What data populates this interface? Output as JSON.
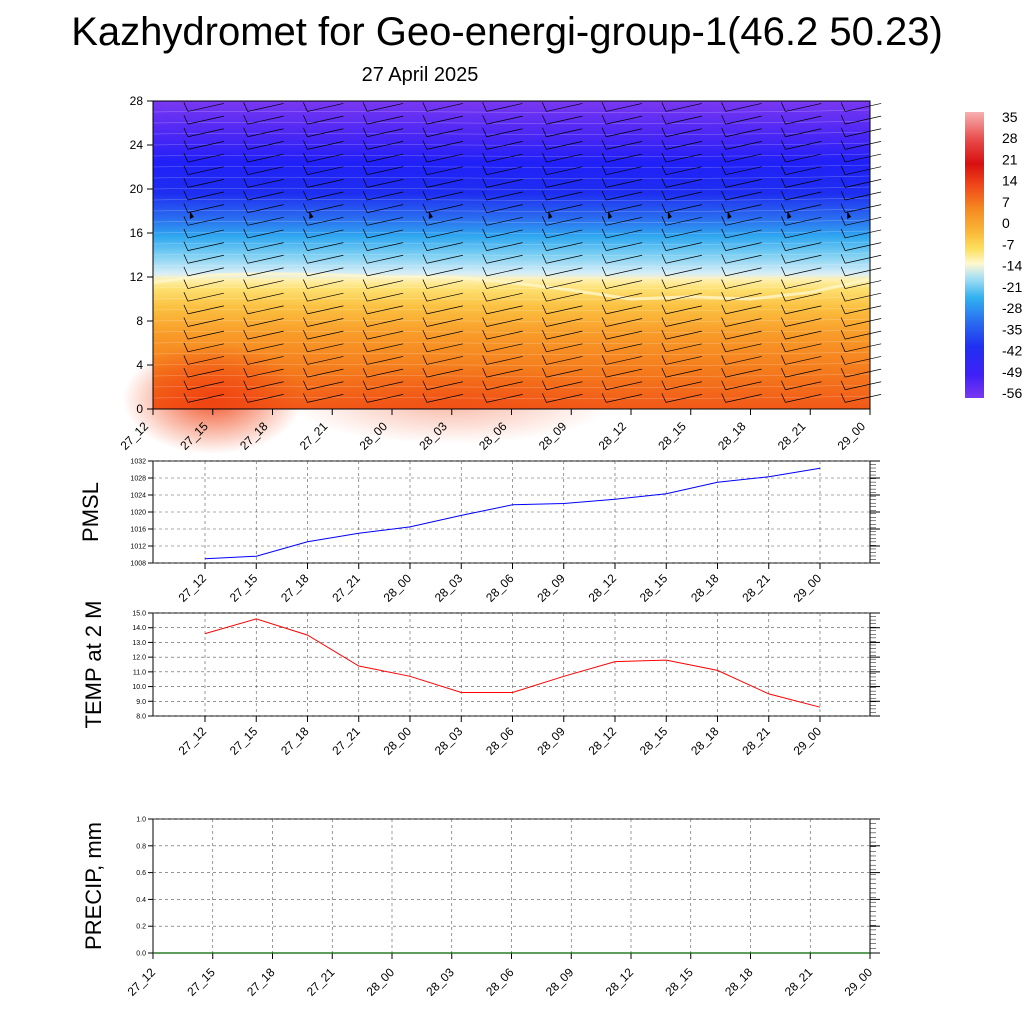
{
  "title": "Kazhydromet for Geo-energi-group-1(46.2 50.23)",
  "subtitle": "27 April 2025",
  "chart_data": [
    {
      "type": "heatmap",
      "name": "cross-section",
      "x_ticks": [
        "27_12",
        "27_15",
        "27_18",
        "27_21",
        "28_00",
        "28_03",
        "28_06",
        "28_09",
        "28_12",
        "28_15",
        "28_18",
        "28_21",
        "29_00"
      ],
      "y_ticks": [
        0,
        4,
        8,
        12,
        16,
        20,
        24,
        28
      ],
      "ylim": [
        0,
        28
      ],
      "colorbar": {
        "labels": [
          "35",
          "28",
          "21",
          "14",
          "7",
          "0",
          "-7",
          "-14",
          "-21",
          "-28",
          "-35",
          "-42",
          "-49",
          "-56"
        ],
        "colors": [
          "#f5a0a0",
          "#e84848",
          "#d81010",
          "#f04020",
          "#f58020",
          "#f9b030",
          "#fde060",
          "#fff4c0",
          "#b8e4f4",
          "#40b8f0",
          "#2060f0",
          "#3040e8",
          "#3020f8",
          "#7030f0"
        ]
      },
      "freezing_level_x": [
        "27_12",
        "27_15",
        "27_18",
        "27_21",
        "28_00",
        "28_03",
        "28_06",
        "28_09",
        "28_12",
        "28_15",
        "28_18",
        "28_21",
        "29_00"
      ],
      "freezing_level": [
        11.5,
        12.2,
        12.3,
        12.2,
        12.0,
        12.0,
        11.5,
        10.8,
        10.0,
        10.2,
        10.0,
        10.6,
        11.8
      ],
      "grid": true
    },
    {
      "type": "line",
      "ylabel": "PMSL",
      "x": [
        "27_12",
        "27_15",
        "27_18",
        "27_21",
        "28_00",
        "28_03",
        "28_06",
        "28_09",
        "28_12",
        "28_15",
        "28_18",
        "28_21",
        "29_00"
      ],
      "series": [
        {
          "values": [
            1009.0,
            1009.6,
            1013.0,
            1015.0,
            1016.5,
            1019.2,
            1021.7,
            1022.0,
            1023.0,
            1024.3,
            1027.0,
            1028.3,
            1030.3
          ],
          "color": "#0000ff"
        }
      ],
      "ylim": [
        1008,
        1032
      ],
      "y_ticks": [
        "1008",
        "1012",
        "1016",
        "1020",
        "1024",
        "1028",
        "1032"
      ],
      "grid": true
    },
    {
      "type": "line",
      "ylabel": "TEMP at 2 M",
      "x": [
        "27_12",
        "27_15",
        "27_18",
        "27_21",
        "28_00",
        "28_03",
        "28_06",
        "28_09",
        "28_12",
        "28_15",
        "28_18",
        "28_21",
        "29_00"
      ],
      "series": [
        {
          "values": [
            13.6,
            14.6,
            13.5,
            11.4,
            10.7,
            9.6,
            9.6,
            10.7,
            11.7,
            11.8,
            11.1,
            9.5,
            8.6
          ],
          "color": "#ff0000"
        }
      ],
      "ylim": [
        8,
        15
      ],
      "y_ticks": [
        "8.0",
        "9.0",
        "10.0",
        "11.0",
        "12.0",
        "13.0",
        "14.0",
        "15.0"
      ],
      "grid": true
    },
    {
      "type": "line",
      "ylabel": "PRECIP, mm",
      "x": [
        "27_12",
        "27_15",
        "27_18",
        "27_21",
        "28_00",
        "28_03",
        "28_06",
        "28_09",
        "28_12",
        "28_15",
        "28_18",
        "28_21",
        "29_00"
      ],
      "series": [
        {
          "values": [
            0,
            0,
            0,
            0,
            0,
            0,
            0,
            0,
            0,
            0,
            0,
            0,
            0
          ],
          "color": "#006400"
        }
      ],
      "ylim": [
        0,
        1
      ],
      "y_ticks": [
        "0.0",
        "0.2",
        "0.4",
        "0.6",
        "0.8",
        "1.0"
      ],
      "grid": true
    }
  ]
}
